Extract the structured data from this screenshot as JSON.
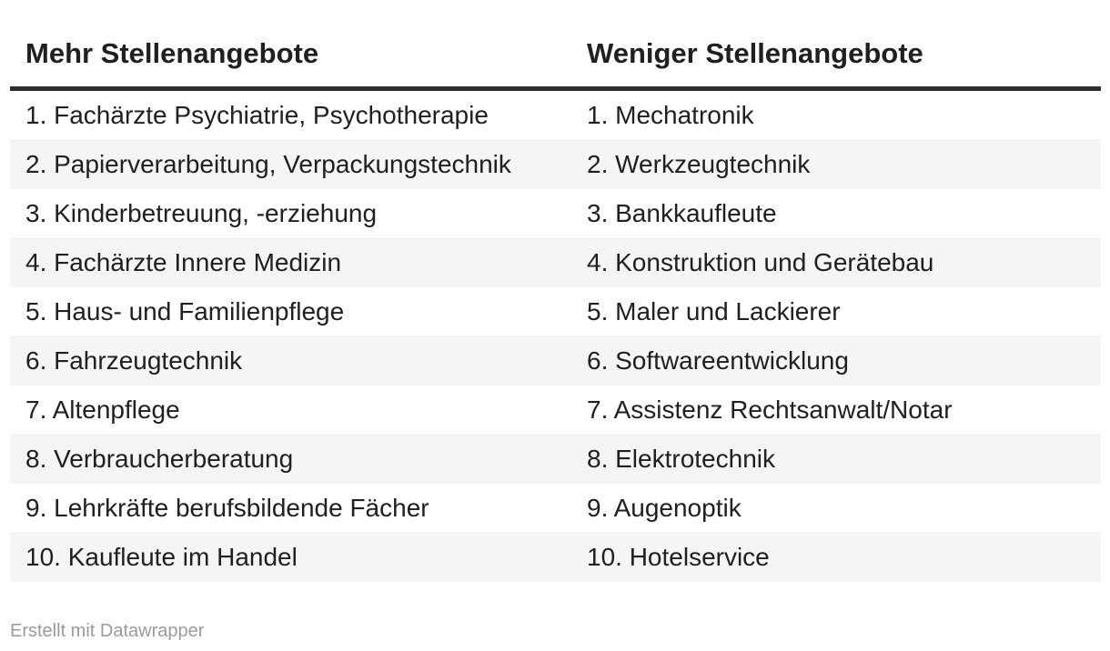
{
  "chart_data": {
    "type": "table",
    "columns": [
      {
        "header": "Mehr Stellenangebote",
        "cells": [
          "1. Fachärzte Psychiatrie, Psychotherapie",
          "2. Papierverarbeitung, Verpackungstechnik",
          "3. Kinderbetreuung, -erziehung",
          "4. Fachärzte Innere Medizin",
          "5. Haus- und Familienpflege",
          "6. Fahrzeugtechnik",
          "7. Altenpflege",
          "8. Verbraucherberatung",
          "9. Lehrkräfte berufsbildende Fächer",
          "10. Kaufleute im Handel"
        ]
      },
      {
        "header": "Weniger Stellenangebote",
        "cells": [
          "1. Mechatronik",
          "2. Werkzeugtechnik",
          "3. Bankkaufleute",
          "4. Konstruktion und Gerätebau",
          "5. Maler und Lackierer",
          "6. Softwareentwicklung",
          "7. Assistenz Rechtsanwalt/Notar",
          "8. Elektrotechnik",
          "9. Augenoptik",
          "10. Hotelservice"
        ]
      }
    ],
    "layout": {
      "striped": true,
      "stripe_rows": "even",
      "legend_position": "none",
      "grid": "off"
    }
  },
  "attribution": {
    "label": "Erstellt mit Datawrapper"
  },
  "colors": {
    "header_rule": "#2e2e2e",
    "text": "#202020",
    "stripe": "#f5f5f5",
    "row_border": "#ededed",
    "attribution": "#9b9b9b",
    "background": "#ffffff"
  }
}
